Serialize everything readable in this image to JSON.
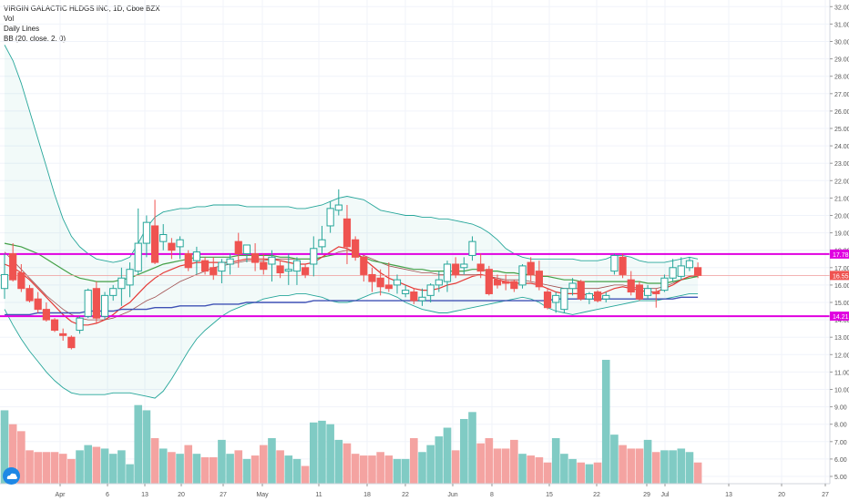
{
  "legend": {
    "title": "VIRGIN GALACTIC HLDGS INC, 1D, Cboe BZX",
    "vol": "Vol",
    "daily_lines": "Daily Lines",
    "bb": "BB (20, close, 2, 0)"
  },
  "colors": {
    "up": "#26a69a",
    "down": "#ef5350",
    "vol_up": "#80cbc4",
    "vol_down": "#f4a3a1",
    "bb_band": "#26a69a",
    "magenta": "#e000e0",
    "ma_red": "#e53935",
    "ma_green": "#43a047",
    "ma_blue": "#3f51b5",
    "ma_black": "#555555"
  },
  "chart_data": {
    "type": "candlestick",
    "price_axis": {
      "ticks": [
        "5.00",
        "6.00",
        "7.00",
        "8.00",
        "9.00",
        "10.00",
        "11.00",
        "12.00",
        "13.00",
        "14.00",
        "15.00",
        "16.00",
        "17.00",
        "18.00",
        "19.00",
        "20.00",
        "21.00",
        "22.00",
        "23.00",
        "24.00",
        "25.00",
        "26.00",
        "27.00",
        "28.00",
        "29.00",
        "30.00",
        "31.00",
        "32.00"
      ],
      "range": [
        4.5,
        32.3
      ]
    },
    "x_axis": {
      "ticks": [
        "Apr",
        "6",
        "13",
        "20",
        "27",
        "May",
        "11",
        "18",
        "22",
        "Jun",
        "8",
        "15",
        "22",
        "29",
        "Jul",
        "13",
        "20",
        "27"
      ]
    },
    "horizontal_lines": [
      {
        "label": "17.78",
        "value": 17.78
      },
      {
        "label": "14.21",
        "value": 14.21
      }
    ],
    "last_price": {
      "label": "16.55",
      "value": 16.55
    },
    "candles": [
      {
        "o": 15.8,
        "h": 17.8,
        "l": 15.2,
        "c": 16.6
      },
      {
        "o": 17.8,
        "h": 18.4,
        "l": 16.2,
        "c": 16.3
      },
      {
        "o": 16.7,
        "h": 17.2,
        "l": 15.6,
        "c": 15.8
      },
      {
        "o": 15.8,
        "h": 16.0,
        "l": 15.0,
        "c": 15.1
      },
      {
        "o": 15.2,
        "h": 15.6,
        "l": 14.4,
        "c": 14.6
      },
      {
        "o": 14.6,
        "h": 15.0,
        "l": 13.9,
        "c": 14.0
      },
      {
        "o": 14.0,
        "h": 14.1,
        "l": 13.3,
        "c": 13.4
      },
      {
        "o": 13.2,
        "h": 13.5,
        "l": 12.8,
        "c": 13.1
      },
      {
        "o": 13.0,
        "h": 13.1,
        "l": 12.3,
        "c": 12.4
      },
      {
        "o": 13.4,
        "h": 14.2,
        "l": 13.2,
        "c": 14.1
      },
      {
        "o": 14.2,
        "h": 15.8,
        "l": 14.1,
        "c": 15.7
      },
      {
        "o": 15.8,
        "h": 16.2,
        "l": 13.8,
        "c": 14.1
      },
      {
        "o": 14.2,
        "h": 15.6,
        "l": 14.0,
        "c": 15.4
      },
      {
        "o": 15.4,
        "h": 16.0,
        "l": 15.1,
        "c": 15.8
      },
      {
        "o": 15.8,
        "h": 17.0,
        "l": 14.8,
        "c": 16.4
      },
      {
        "o": 16.0,
        "h": 17.3,
        "l": 15.3,
        "c": 16.9
      },
      {
        "o": 16.8,
        "h": 20.4,
        "l": 16.6,
        "c": 18.4
      },
      {
        "o": 18.4,
        "h": 20.0,
        "l": 17.6,
        "c": 19.6
      },
      {
        "o": 19.4,
        "h": 20.9,
        "l": 17.2,
        "c": 17.3
      },
      {
        "o": 18.5,
        "h": 19.5,
        "l": 18.0,
        "c": 18.9
      },
      {
        "o": 18.4,
        "h": 18.7,
        "l": 17.5,
        "c": 18.0
      },
      {
        "o": 18.2,
        "h": 18.8,
        "l": 17.5,
        "c": 18.6
      },
      {
        "o": 17.8,
        "h": 18.0,
        "l": 16.8,
        "c": 17.0
      },
      {
        "o": 17.4,
        "h": 18.2,
        "l": 16.6,
        "c": 17.9
      },
      {
        "o": 17.4,
        "h": 17.6,
        "l": 16.6,
        "c": 16.8
      },
      {
        "o": 17.0,
        "h": 17.6,
        "l": 16.3,
        "c": 16.6
      },
      {
        "o": 16.8,
        "h": 17.5,
        "l": 16.1,
        "c": 17.3
      },
      {
        "o": 17.2,
        "h": 17.8,
        "l": 16.6,
        "c": 17.5
      },
      {
        "o": 18.5,
        "h": 19.0,
        "l": 17.0,
        "c": 17.8
      },
      {
        "o": 17.8,
        "h": 18.3,
        "l": 17.3,
        "c": 18.3
      },
      {
        "o": 17.8,
        "h": 18.4,
        "l": 16.8,
        "c": 17.3
      },
      {
        "o": 17.3,
        "h": 17.8,
        "l": 16.6,
        "c": 16.9
      },
      {
        "o": 17.2,
        "h": 18.0,
        "l": 16.2,
        "c": 17.6
      },
      {
        "o": 17.1,
        "h": 17.4,
        "l": 16.4,
        "c": 16.7
      },
      {
        "o": 16.8,
        "h": 17.8,
        "l": 16.0,
        "c": 16.9
      },
      {
        "o": 16.8,
        "h": 17.6,
        "l": 16.0,
        "c": 17.4
      },
      {
        "o": 17.0,
        "h": 17.2,
        "l": 16.4,
        "c": 16.6
      },
      {
        "o": 17.2,
        "h": 18.8,
        "l": 16.5,
        "c": 18.1
      },
      {
        "o": 18.2,
        "h": 19.4,
        "l": 17.8,
        "c": 18.6
      },
      {
        "o": 19.4,
        "h": 20.8,
        "l": 19.0,
        "c": 20.4
      },
      {
        "o": 20.3,
        "h": 21.5,
        "l": 20.0,
        "c": 20.6
      },
      {
        "o": 19.8,
        "h": 20.6,
        "l": 17.2,
        "c": 18.2
      },
      {
        "o": 18.6,
        "h": 18.8,
        "l": 17.4,
        "c": 17.6
      },
      {
        "o": 17.6,
        "h": 17.7,
        "l": 16.2,
        "c": 16.6
      },
      {
        "o": 16.6,
        "h": 17.0,
        "l": 15.6,
        "c": 16.2
      },
      {
        "o": 16.4,
        "h": 16.9,
        "l": 15.4,
        "c": 15.9
      },
      {
        "o": 16.0,
        "h": 17.3,
        "l": 15.6,
        "c": 15.8
      },
      {
        "o": 16.0,
        "h": 16.6,
        "l": 15.5,
        "c": 16.3
      },
      {
        "o": 15.5,
        "h": 16.0,
        "l": 15.3,
        "c": 15.7
      },
      {
        "o": 15.6,
        "h": 15.8,
        "l": 14.9,
        "c": 15.1
      },
      {
        "o": 15.1,
        "h": 15.8,
        "l": 14.8,
        "c": 15.3
      },
      {
        "o": 15.4,
        "h": 16.1,
        "l": 15.0,
        "c": 16.0
      },
      {
        "o": 16.0,
        "h": 16.8,
        "l": 15.6,
        "c": 16.3
      },
      {
        "o": 16.2,
        "h": 17.4,
        "l": 15.6,
        "c": 17.2
      },
      {
        "o": 17.2,
        "h": 17.6,
        "l": 16.4,
        "c": 16.6
      },
      {
        "o": 17.0,
        "h": 17.6,
        "l": 16.6,
        "c": 17.2
      },
      {
        "o": 17.7,
        "h": 18.8,
        "l": 17.4,
        "c": 18.5
      },
      {
        "o": 17.2,
        "h": 17.8,
        "l": 16.4,
        "c": 16.8
      },
      {
        "o": 16.9,
        "h": 17.1,
        "l": 15.4,
        "c": 15.5
      },
      {
        "o": 16.3,
        "h": 16.6,
        "l": 15.8,
        "c": 16.0
      },
      {
        "o": 16.2,
        "h": 16.6,
        "l": 15.7,
        "c": 16.1
      },
      {
        "o": 16.2,
        "h": 16.3,
        "l": 15.6,
        "c": 15.8
      },
      {
        "o": 16.0,
        "h": 17.2,
        "l": 15.8,
        "c": 17.1
      },
      {
        "o": 17.3,
        "h": 17.6,
        "l": 16.2,
        "c": 16.6
      },
      {
        "o": 16.8,
        "h": 17.4,
        "l": 15.7,
        "c": 15.9
      },
      {
        "o": 15.6,
        "h": 15.8,
        "l": 14.6,
        "c": 14.7
      },
      {
        "o": 15.0,
        "h": 15.6,
        "l": 14.4,
        "c": 15.4
      },
      {
        "o": 14.6,
        "h": 15.8,
        "l": 14.4,
        "c": 15.8
      },
      {
        "o": 15.8,
        "h": 16.4,
        "l": 15.4,
        "c": 16.1
      },
      {
        "o": 16.2,
        "h": 16.3,
        "l": 15.1,
        "c": 15.2
      },
      {
        "o": 15.2,
        "h": 15.6,
        "l": 14.9,
        "c": 15.5
      },
      {
        "o": 15.6,
        "h": 15.7,
        "l": 15.0,
        "c": 15.1
      },
      {
        "o": 15.2,
        "h": 15.6,
        "l": 15.0,
        "c": 15.4
      },
      {
        "o": 16.8,
        "h": 17.8,
        "l": 16.6,
        "c": 17.7
      },
      {
        "o": 17.6,
        "h": 17.8,
        "l": 16.4,
        "c": 16.6
      },
      {
        "o": 16.3,
        "h": 16.8,
        "l": 15.4,
        "c": 15.6
      },
      {
        "o": 16.0,
        "h": 16.2,
        "l": 15.1,
        "c": 15.2
      },
      {
        "o": 15.4,
        "h": 16.0,
        "l": 15.2,
        "c": 15.8
      },
      {
        "o": 15.6,
        "h": 15.8,
        "l": 14.7,
        "c": 15.5
      },
      {
        "o": 15.7,
        "h": 16.6,
        "l": 15.6,
        "c": 16.4
      },
      {
        "o": 16.4,
        "h": 17.5,
        "l": 16.2,
        "c": 17.0
      },
      {
        "o": 16.5,
        "h": 17.6,
        "l": 16.3,
        "c": 17.1
      },
      {
        "o": 17.0,
        "h": 17.6,
        "l": 16.8,
        "c": 17.4
      },
      {
        "o": 17.0,
        "h": 17.3,
        "l": 16.4,
        "c": 16.55
      }
    ],
    "volume": [
      8.8,
      8.0,
      7.6,
      6.5,
      6.4,
      6.4,
      6.4,
      6.3,
      6.0,
      6.5,
      6.8,
      6.7,
      6.6,
      6.3,
      6.5,
      5.7,
      9.1,
      8.8,
      7.2,
      6.6,
      6.4,
      6.3,
      6.8,
      6.3,
      6.1,
      6.1,
      7.1,
      6.3,
      6.5,
      6.0,
      6.2,
      6.8,
      7.2,
      6.5,
      6.2,
      6.0,
      5.6,
      8.1,
      8.2,
      8.0,
      7.1,
      6.9,
      6.3,
      6.2,
      6.2,
      6.4,
      6.2,
      6.0,
      6.0,
      7.2,
      6.4,
      6.8,
      7.3,
      7.8,
      6.5,
      8.3,
      8.7,
      6.9,
      7.2,
      6.6,
      6.6,
      7.1,
      6.3,
      6.2,
      6.1,
      5.8,
      7.2,
      6.3,
      6.0,
      5.8,
      5.7,
      5.8,
      11.7,
      7.4,
      6.8,
      6.6,
      6.6,
      7.1,
      6.4,
      6.5,
      6.5,
      6.6,
      6.4,
      5.8
    ],
    "bb_upper": [
      29.8,
      28.9,
      27.6,
      26.0,
      24.4,
      22.8,
      21.2,
      19.8,
      18.8,
      18.2,
      17.8,
      17.5,
      17.4,
      17.3,
      17.4,
      17.6,
      18.4,
      19.3,
      19.9,
      20.2,
      20.3,
      20.4,
      20.4,
      20.5,
      20.5,
      20.6,
      20.6,
      20.6,
      20.6,
      20.5,
      20.5,
      20.5,
      20.5,
      20.5,
      20.5,
      20.4,
      20.4,
      20.5,
      20.6,
      20.8,
      21.0,
      21.1,
      21.0,
      20.9,
      20.6,
      20.3,
      20.2,
      20.1,
      20.0,
      20.0,
      19.9,
      19.9,
      19.8,
      19.8,
      19.7,
      19.6,
      19.5,
      19.3,
      19.0,
      18.6,
      18.1,
      17.8,
      17.6,
      17.5,
      17.5,
      17.5,
      17.5,
      17.5,
      17.5,
      17.4,
      17.4,
      17.4,
      17.5,
      17.7,
      17.7,
      17.6,
      17.4,
      17.3,
      17.3,
      17.3,
      17.4,
      17.5,
      17.6,
      17.5
    ],
    "bb_lower": [
      14.6,
      13.7,
      12.9,
      12.2,
      11.6,
      11.0,
      10.5,
      10.1,
      9.8,
      9.7,
      9.7,
      9.7,
      9.7,
      9.8,
      9.8,
      9.8,
      9.7,
      9.6,
      9.5,
      9.9,
      10.6,
      11.4,
      12.2,
      12.9,
      13.4,
      13.8,
      14.2,
      14.5,
      14.7,
      14.9,
      15.0,
      15.2,
      15.3,
      15.4,
      15.4,
      15.5,
      15.5,
      15.4,
      15.3,
      15.1,
      15.0,
      15.0,
      15.1,
      15.3,
      15.5,
      15.6,
      15.5,
      15.3,
      15.0,
      14.8,
      14.6,
      14.5,
      14.4,
      14.4,
      14.5,
      14.6,
      14.7,
      14.8,
      14.9,
      15.0,
      15.1,
      15.2,
      15.3,
      15.2,
      15.0,
      14.7,
      14.5,
      14.4,
      14.3,
      14.4,
      14.5,
      14.6,
      14.7,
      14.8,
      14.9,
      15.0,
      15.1,
      15.1,
      15.1,
      15.2,
      15.3,
      15.4,
      15.5,
      15.5
    ],
    "bb_basis": [
      17.9,
      17.4,
      16.9,
      16.4,
      15.9,
      15.4,
      15.0,
      14.6,
      14.3,
      14.1,
      14.0,
      14.0,
      14.0,
      14.1,
      14.3,
      14.5,
      14.8,
      15.1,
      15.3,
      15.6,
      15.9,
      16.2,
      16.4,
      16.6,
      16.8,
      17.0,
      17.1,
      17.2,
      17.3,
      17.4,
      17.4,
      17.4,
      17.5,
      17.5,
      17.5,
      17.5,
      17.5,
      17.5,
      17.6,
      17.7,
      17.9,
      18.0,
      17.9,
      17.7,
      17.5,
      17.3,
      17.1,
      17.0,
      16.9,
      16.8,
      16.7,
      16.7,
      16.6,
      16.6,
      16.6,
      16.6,
      16.6,
      16.6,
      16.5,
      16.4,
      16.3,
      16.3,
      16.3,
      16.2,
      16.1,
      16.0,
      15.9,
      15.8,
      15.8,
      15.8,
      15.8,
      15.8,
      15.9,
      16.0,
      16.0,
      15.9,
      15.8,
      15.8,
      15.8,
      15.9,
      16.1,
      16.3,
      16.5,
      16.5
    ],
    "ma_red": [
      17.2,
      17.0,
      16.7,
      16.3,
      15.8,
      15.3,
      14.8,
      14.3,
      13.9,
      13.7,
      13.7,
      13.8,
      14.0,
      14.3,
      14.7,
      15.0,
      15.5,
      16.0,
      16.4,
      16.7,
      16.9,
      17.1,
      17.2,
      17.3,
      17.3,
      17.3,
      17.3,
      17.3,
      17.4,
      17.5,
      17.5,
      17.5,
      17.5,
      17.4,
      17.3,
      17.2,
      17.2,
      17.3,
      17.6,
      17.9,
      18.2,
      18.1,
      17.9,
      17.5,
      17.1,
      16.7,
      16.4,
      16.2,
      16.0,
      15.8,
      15.7,
      15.7,
      15.8,
      16.0,
      16.1,
      16.3,
      16.5,
      16.6,
      16.5,
      16.3,
      16.2,
      16.1,
      16.1,
      16.1,
      16.0,
      15.8,
      15.6,
      15.5,
      15.5,
      15.5,
      15.4,
      15.4,
      15.6,
      15.8,
      15.9,
      15.8,
      15.7,
      15.6,
      15.6,
      15.8,
      16.0,
      16.3,
      16.5,
      16.6
    ],
    "ma_green": [
      18.4,
      18.3,
      18.2,
      18.0,
      17.8,
      17.5,
      17.2,
      16.9,
      16.6,
      16.4,
      16.3,
      16.2,
      16.2,
      16.2,
      16.3,
      16.4,
      16.6,
      16.8,
      17.0,
      17.2,
      17.3,
      17.4,
      17.5,
      17.6,
      17.6,
      17.6,
      17.6,
      17.6,
      17.7,
      17.7,
      17.7,
      17.7,
      17.7,
      17.6,
      17.6,
      17.5,
      17.5,
      17.5,
      17.6,
      17.7,
      17.8,
      17.8,
      17.7,
      17.6,
      17.4,
      17.3,
      17.2,
      17.1,
      17.0,
      16.9,
      16.9,
      16.8,
      16.8,
      16.8,
      16.8,
      16.8,
      16.9,
      16.9,
      16.8,
      16.8,
      16.7,
      16.7,
      16.6,
      16.6,
      16.5,
      16.5,
      16.4,
      16.3,
      16.3,
      16.2,
      16.2,
      16.2,
      16.2,
      16.2,
      16.2,
      16.2,
      16.2,
      16.1,
      16.1,
      16.1,
      16.2,
      16.3,
      16.4,
      16.5
    ],
    "ma_blue": [
      14.3,
      14.3,
      14.3,
      14.3,
      14.4,
      14.4,
      14.4,
      14.4,
      14.4,
      14.4,
      14.5,
      14.5,
      14.5,
      14.5,
      14.6,
      14.6,
      14.6,
      14.6,
      14.7,
      14.7,
      14.7,
      14.8,
      14.8,
      14.8,
      14.8,
      14.9,
      14.9,
      14.9,
      14.9,
      15.0,
      15.0,
      15.0,
      15.0,
      15.0,
      15.0,
      15.0,
      15.0,
      15.1,
      15.1,
      15.1,
      15.1,
      15.1,
      15.1,
      15.1,
      15.1,
      15.1,
      15.1,
      15.1,
      15.1,
      15.1,
      15.1,
      15.1,
      15.1,
      15.1,
      15.1,
      15.1,
      15.1,
      15.1,
      15.1,
      15.1,
      15.1,
      15.1,
      15.1,
      15.1,
      15.1,
      15.1,
      15.2,
      15.2,
      15.2,
      15.2,
      15.2,
      15.2,
      15.2,
      15.2,
      15.2,
      15.2,
      15.2,
      15.2,
      15.2,
      15.2,
      15.2,
      15.3,
      15.3,
      15.3
    ]
  }
}
